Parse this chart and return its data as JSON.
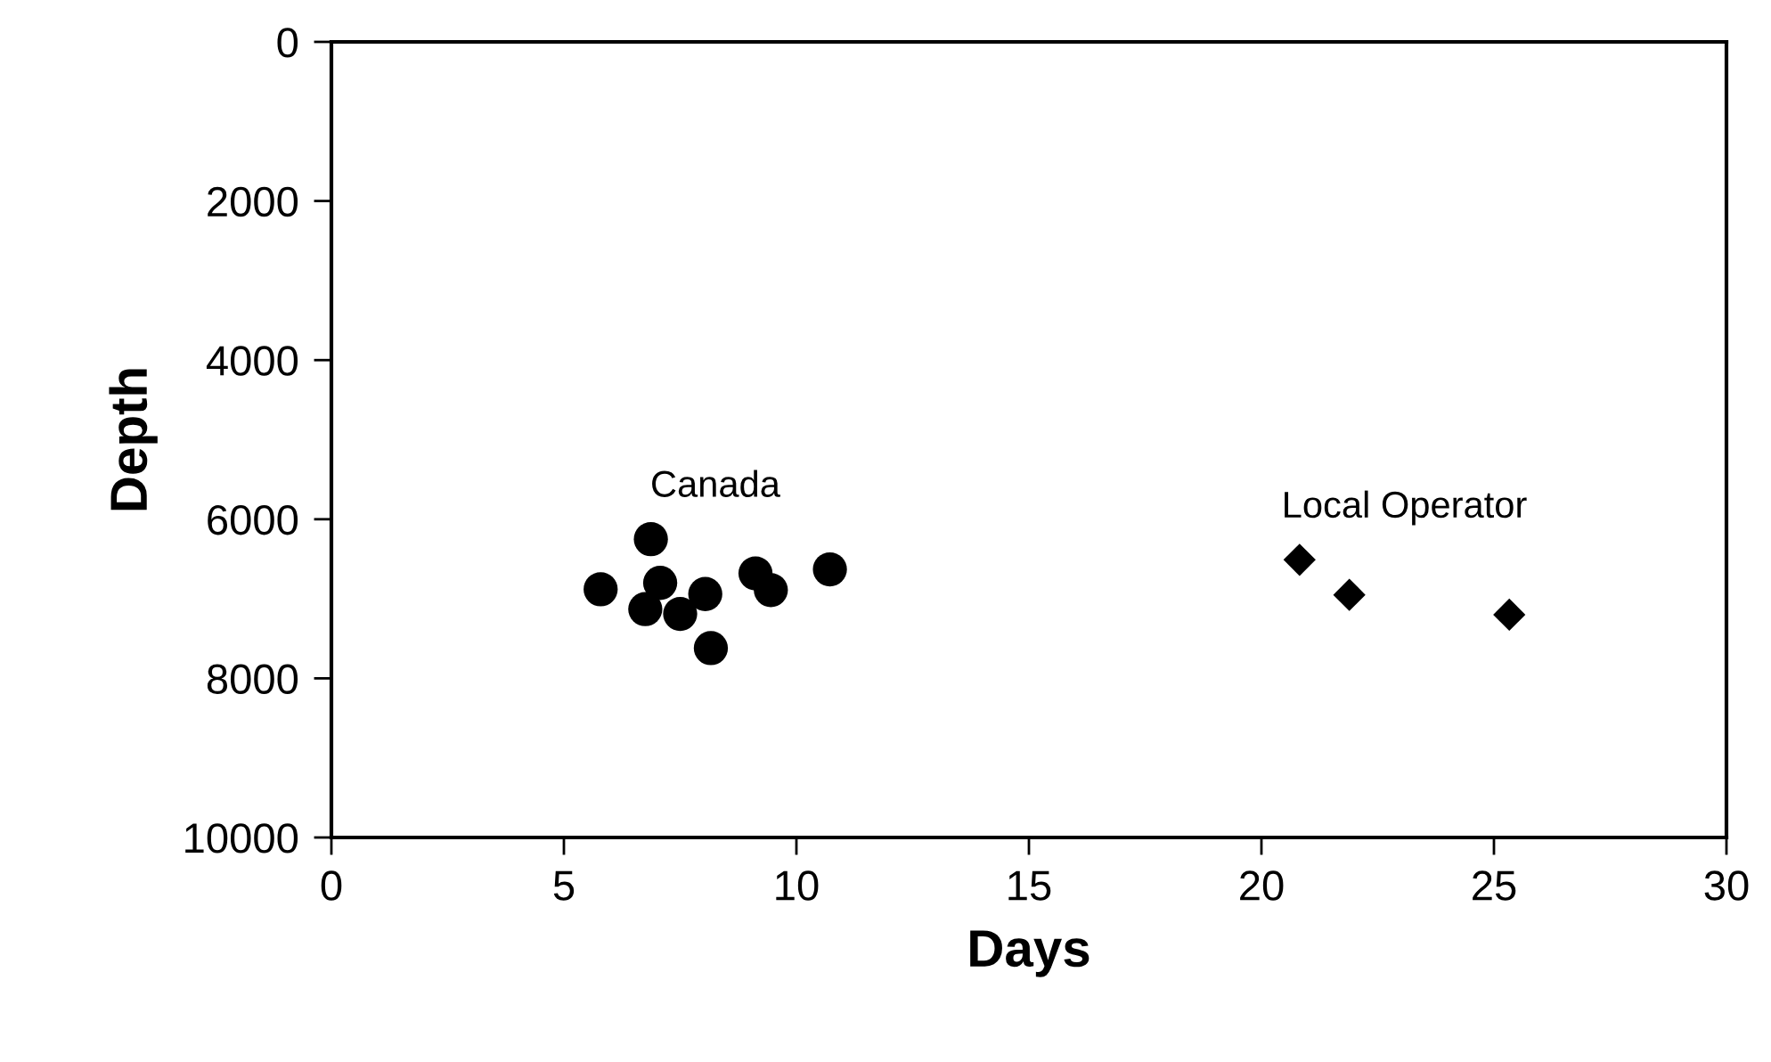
{
  "chart_data": {
    "type": "scatter",
    "xlabel": "Days",
    "ylabel": "Depth",
    "xlim": [
      0,
      30
    ],
    "xticks": [
      0,
      5,
      10,
      15,
      20,
      25,
      30
    ],
    "ylim": [
      10000,
      0
    ],
    "yticks": [
      0,
      2000,
      4000,
      6000,
      8000,
      10000
    ],
    "grid": false,
    "legend": false,
    "series": [
      {
        "name": "Canada",
        "color": "#000000",
        "marker": "circle",
        "x": [
          5.79,
          6.87,
          7.07,
          6.75,
          7.5,
          8.04,
          8.16,
          9.12,
          9.45,
          10.72
        ],
        "values": [
          6880,
          6250,
          6800,
          7130,
          7190,
          6940,
          7620,
          6680,
          6890,
          6630
        ]
      },
      {
        "name": "Local Operator",
        "color": "#000000",
        "marker": "diamond",
        "x": [
          20.82,
          21.89,
          25.33
        ],
        "values": [
          6510,
          6950,
          7200
        ]
      }
    ]
  }
}
